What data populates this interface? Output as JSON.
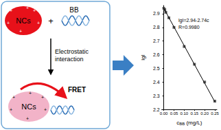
{
  "diagram": {
    "nanoclusters_label": "NCs",
    "dye_label": "BB",
    "plus": "+",
    "step_label": "Electrostatic interaction",
    "transfer_label": "FRET"
  },
  "chart_data": {
    "type": "scatter",
    "x_label": {
      "text": "c",
      "subscript": "BB",
      "unit": "(mg/L)"
    },
    "y_label": "lgI",
    "x": [
      0,
      0.005,
      0.01,
      0.025,
      0.05,
      0.1,
      0.15,
      0.2,
      0.25
    ],
    "values": [
      2.94,
      2.93,
      2.91,
      2.87,
      2.8,
      2.66,
      2.53,
      2.4,
      2.26
    ],
    "color": "#333333",
    "marker": "square",
    "fit": {
      "x": [
        0,
        0.25
      ],
      "values": [
        2.94,
        2.255
      ],
      "color": "#000000"
    },
    "annotations": [
      "lgI=2.94-2.74c",
      "R=0.9980"
    ],
    "xlim": [
      -0.01,
      0.26
    ],
    "xticks": [
      {
        "value": 0,
        "label": "0.00"
      },
      {
        "value": 0.05,
        "label": "0.05"
      },
      {
        "value": 0.1,
        "label": "0.10"
      },
      {
        "value": 0.15,
        "label": "0.15"
      },
      {
        "value": 0.2,
        "label": "0.20"
      },
      {
        "value": 0.25,
        "label": "0.25"
      }
    ],
    "ylim": [
      2.2,
      2.96
    ],
    "yticks": [
      2.2,
      2.3,
      2.4,
      2.5,
      2.6,
      2.7,
      2.8,
      2.9
    ],
    "grid": false
  }
}
